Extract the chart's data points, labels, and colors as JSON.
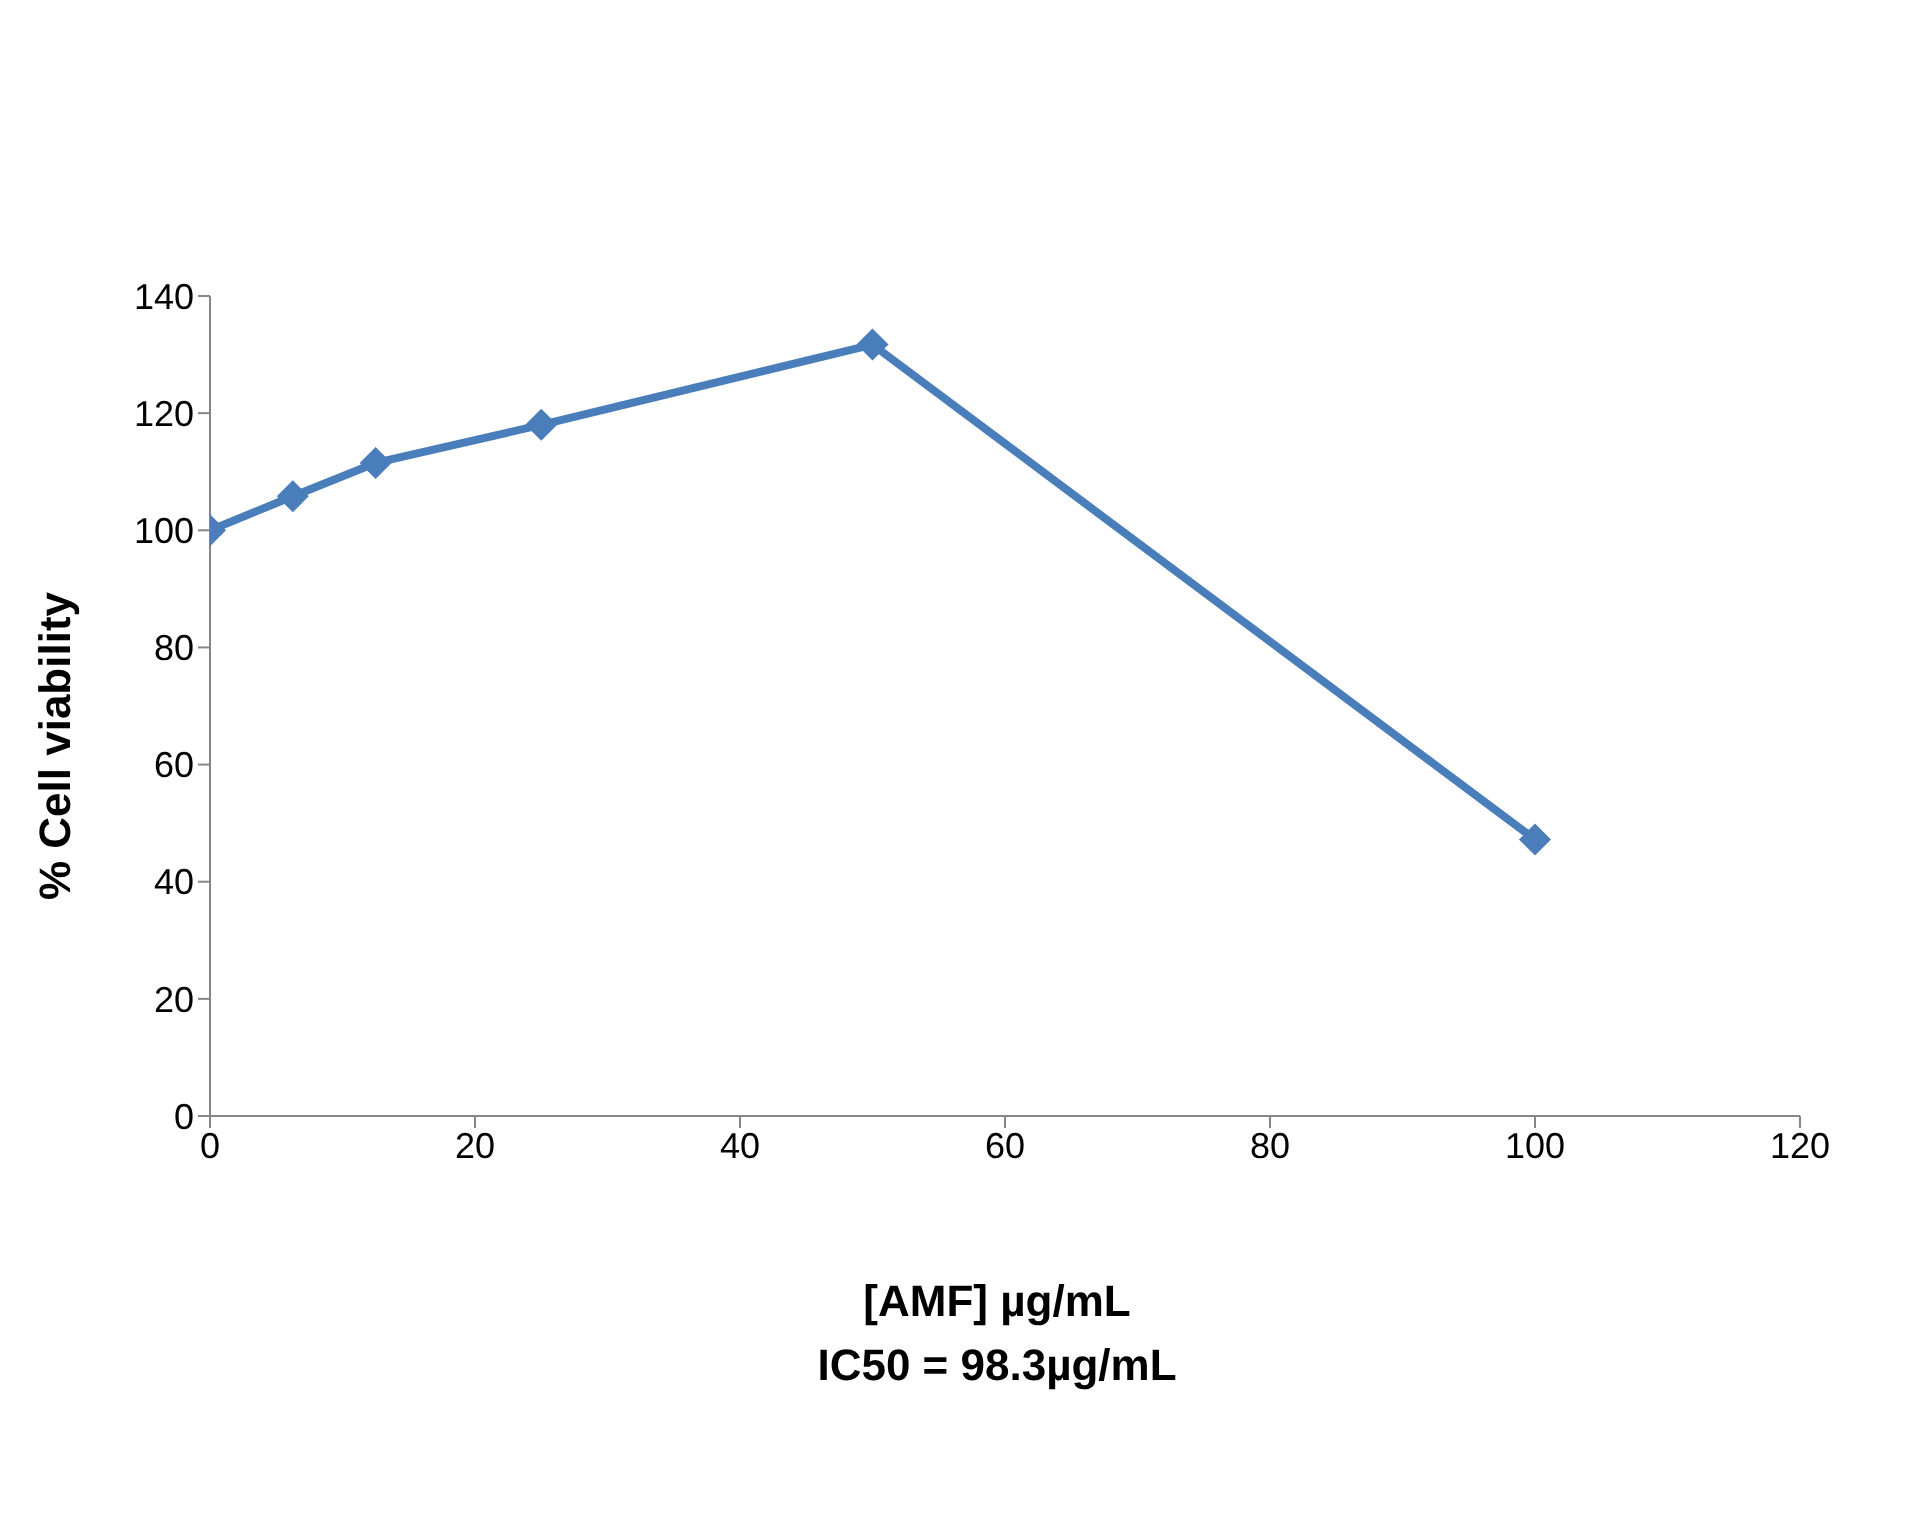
{
  "chart_data": {
    "type": "line",
    "xlabel": "[AMF] µg/mL",
    "ylabel": "% Cell viability",
    "annotations": [
      "IC50 = 98.3µg/mL"
    ],
    "x": [
      0,
      6.25,
      12.5,
      25,
      50,
      100
    ],
    "series": [
      {
        "color": "#4a7ebb",
        "values": [
          100,
          105.8,
          111.5,
          118,
          131.7,
          47.2
        ]
      }
    ],
    "xlim": [
      0,
      120
    ],
    "xticks": [
      0,
      20,
      40,
      60,
      80,
      100,
      120
    ],
    "ylim": [
      0,
      140
    ],
    "yticks": [
      0,
      20,
      40,
      60,
      80,
      100,
      120,
      140
    ],
    "grid": false,
    "legend": false,
    "marker": "diamond",
    "line_style": "solid"
  }
}
